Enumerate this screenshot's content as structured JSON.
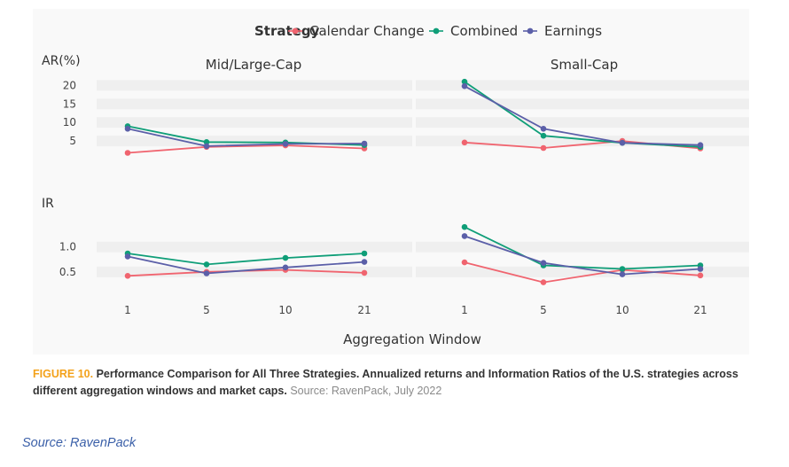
{
  "chart_data": {
    "type": "line",
    "legend": {
      "title": "Strategy",
      "placement": "top",
      "items": [
        {
          "name": "Calendar Change",
          "color": "#f0646f"
        },
        {
          "name": "Combined",
          "color": "#0f9e78"
        },
        {
          "name": "Earnings",
          "color": "#5b5fa8"
        }
      ]
    },
    "x": [
      "1",
      "5",
      "10",
      "21"
    ],
    "xlabel": "Aggregation Window",
    "columns": [
      "Mid/Large-Cap",
      "Small-Cap"
    ],
    "rows": [
      {
        "ylabel": "AR(%)",
        "ylim": [
          0,
          22
        ],
        "yticks": [
          "5",
          "10",
          "15",
          "20"
        ],
        "yticks_values": [
          5,
          10,
          15,
          20
        ],
        "panels": [
          {
            "column": "Mid/Large-Cap",
            "series": [
              {
                "name": "Calendar Change",
                "values": [
                  1.8,
                  3.4,
                  3.8,
                  3.0
                ]
              },
              {
                "name": "Combined",
                "values": [
                  9.0,
                  4.7,
                  4.6,
                  3.9
                ]
              },
              {
                "name": "Earnings",
                "values": [
                  8.3,
                  3.6,
                  4.2,
                  4.3
                ]
              }
            ]
          },
          {
            "column": "Small-Cap",
            "series": [
              {
                "name": "Calendar Change",
                "values": [
                  4.6,
                  3.1,
                  5.0,
                  3.0
                ]
              },
              {
                "name": "Combined",
                "values": [
                  21.0,
                  6.4,
                  4.5,
                  3.4
                ]
              },
              {
                "name": "Earnings",
                "values": [
                  19.8,
                  8.3,
                  4.5,
                  3.9
                ]
              }
            ]
          }
        ]
      },
      {
        "ylabel": "IR",
        "ylim": [
          0.23,
          1.6
        ],
        "yticks": [
          "0.5",
          "1.0"
        ],
        "yticks_values": [
          0.5,
          1.0
        ],
        "panels": [
          {
            "column": "Mid/Large-Cap",
            "series": [
              {
                "name": "Calendar Change",
                "values": [
                  0.42,
                  0.5,
                  0.54,
                  0.48
                ]
              },
              {
                "name": "Combined",
                "values": [
                  0.87,
                  0.65,
                  0.78,
                  0.87
                ]
              },
              {
                "name": "Earnings",
                "values": [
                  0.81,
                  0.47,
                  0.59,
                  0.7
                ]
              }
            ]
          },
          {
            "column": "Small-Cap",
            "series": [
              {
                "name": "Calendar Change",
                "values": [
                  0.69,
                  0.29,
                  0.54,
                  0.43
                ]
              },
              {
                "name": "Combined",
                "values": [
                  1.4,
                  0.63,
                  0.56,
                  0.63
                ]
              },
              {
                "name": "Earnings",
                "values": [
                  1.22,
                  0.68,
                  0.45,
                  0.56
                ]
              }
            ]
          }
        ]
      }
    ]
  },
  "caption": {
    "figure_label": "FIGURE 10.",
    "text": "Performance Comparison for All Three Strategies. Annualized returns and Information Ratios of the U.S. strategies across different aggregation windows and market caps.",
    "source": "Source: RavenPack, July 2022"
  },
  "footer_source": "Source: RavenPack"
}
